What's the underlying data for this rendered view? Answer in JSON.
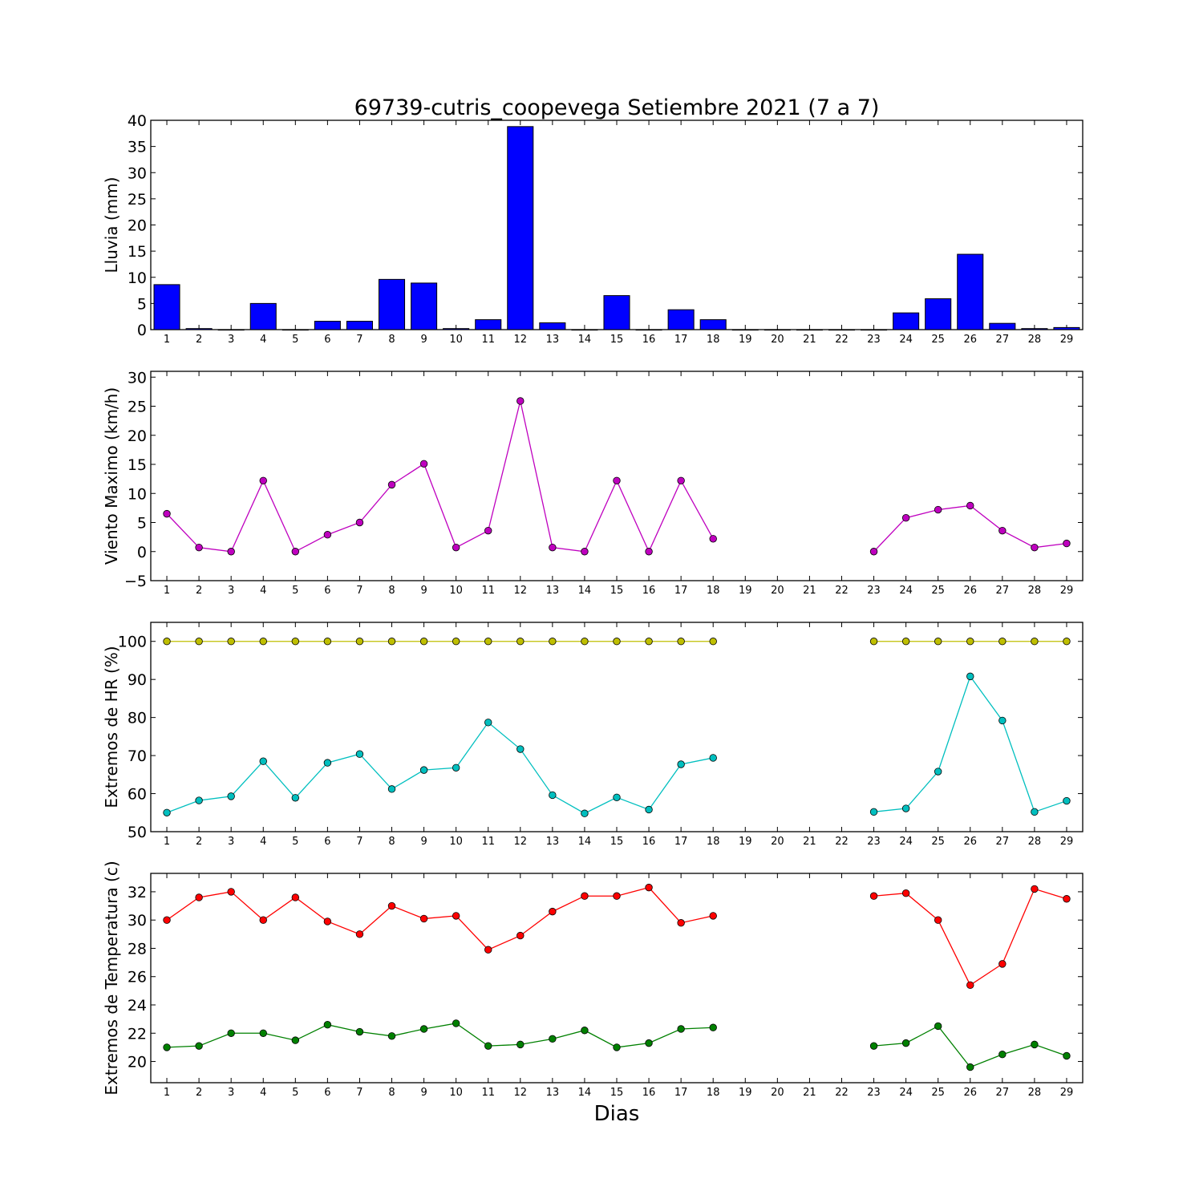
{
  "figure": {
    "title": "69739-cutris_coopevega Setiembre 2021  (7 a 7)",
    "xlabel": "Dias"
  },
  "colors": {
    "rain": "#0000ff",
    "wind": "#bf00bf",
    "hr_max": "#bfbf00",
    "hr_min": "#00bfbf",
    "t_max": "#ff0000",
    "t_min": "#008000"
  },
  "chart_data": [
    {
      "id": "rain",
      "type": "bar",
      "ylabel": "Lluvia (mm)",
      "ylim": [
        0,
        40
      ],
      "yticks": [
        0,
        5,
        10,
        15,
        20,
        25,
        30,
        35,
        40
      ],
      "x": [
        1,
        2,
        3,
        4,
        5,
        6,
        7,
        8,
        9,
        10,
        11,
        12,
        13,
        14,
        15,
        16,
        17,
        18,
        19,
        20,
        21,
        22,
        23,
        24,
        25,
        26,
        27,
        28,
        29
      ],
      "series": [
        {
          "color_key": "rain",
          "values": [
            8.6,
            0.2,
            0,
            5.0,
            0,
            1.6,
            1.6,
            9.6,
            8.9,
            0.2,
            1.9,
            38.8,
            1.3,
            0,
            6.5,
            0,
            3.8,
            1.9,
            0,
            0,
            0,
            0,
            0,
            3.2,
            5.9,
            14.4,
            1.2,
            0.2,
            0.4
          ]
        }
      ]
    },
    {
      "id": "wind",
      "type": "line",
      "ylabel": "Viento Maximo (km/h)",
      "ylim": [
        -5,
        31
      ],
      "yticks": [
        -5,
        0,
        5,
        10,
        15,
        20,
        25,
        30
      ],
      "x": [
        1,
        2,
        3,
        4,
        5,
        6,
        7,
        8,
        9,
        10,
        11,
        12,
        13,
        14,
        15,
        16,
        17,
        18,
        19,
        20,
        21,
        22,
        23,
        24,
        25,
        26,
        27,
        28,
        29
      ],
      "series": [
        {
          "color_key": "wind",
          "values": [
            6.5,
            0.7,
            0,
            12.2,
            0,
            2.9,
            5.0,
            11.5,
            15.1,
            0.7,
            3.6,
            25.9,
            0.7,
            0,
            12.2,
            0,
            12.2,
            2.2,
            null,
            null,
            null,
            null,
            0,
            5.8,
            7.2,
            7.9,
            3.6,
            0.7,
            1.4
          ]
        }
      ]
    },
    {
      "id": "hr",
      "type": "line",
      "ylabel": "Extremos de HR (%)",
      "ylim": [
        50,
        105
      ],
      "yticks": [
        50,
        60,
        70,
        80,
        90,
        100
      ],
      "x": [
        1,
        2,
        3,
        4,
        5,
        6,
        7,
        8,
        9,
        10,
        11,
        12,
        13,
        14,
        15,
        16,
        17,
        18,
        19,
        20,
        21,
        22,
        23,
        24,
        25,
        26,
        27,
        28,
        29
      ],
      "series": [
        {
          "color_key": "hr_max",
          "values": [
            100,
            100,
            100,
            100,
            100,
            100,
            100,
            100,
            100,
            100,
            100,
            100,
            100,
            100,
            100,
            100,
            100,
            100,
            null,
            null,
            null,
            null,
            100,
            100,
            100,
            100,
            100,
            100,
            100
          ]
        },
        {
          "color_key": "hr_min",
          "values": [
            55.0,
            58.2,
            59.3,
            68.5,
            58.9,
            68.1,
            70.4,
            61.2,
            66.2,
            66.8,
            78.7,
            71.7,
            59.6,
            54.8,
            59.0,
            55.8,
            67.7,
            69.4,
            null,
            null,
            null,
            null,
            55.2,
            56.1,
            65.8,
            90.8,
            79.2,
            55.2,
            58.1
          ]
        }
      ]
    },
    {
      "id": "temp",
      "type": "line",
      "ylabel": "Extremos de Temperatura (c)",
      "ylim": [
        18.5,
        33.3
      ],
      "yticks": [
        20,
        22,
        24,
        26,
        28,
        30,
        32
      ],
      "x": [
        1,
        2,
        3,
        4,
        5,
        6,
        7,
        8,
        9,
        10,
        11,
        12,
        13,
        14,
        15,
        16,
        17,
        18,
        19,
        20,
        21,
        22,
        23,
        24,
        25,
        26,
        27,
        28,
        29
      ],
      "series": [
        {
          "color_key": "t_max",
          "values": [
            30.0,
            31.6,
            32.0,
            30.0,
            31.6,
            29.9,
            29.0,
            31.0,
            30.1,
            30.3,
            27.9,
            28.9,
            30.6,
            31.7,
            31.7,
            32.3,
            29.8,
            30.3,
            null,
            null,
            null,
            null,
            31.7,
            31.9,
            30.0,
            25.4,
            26.9,
            32.2,
            31.5
          ]
        },
        {
          "color_key": "t_min",
          "values": [
            21.0,
            21.1,
            22.0,
            22.0,
            21.5,
            22.6,
            22.1,
            21.8,
            22.3,
            22.7,
            21.1,
            21.2,
            21.6,
            22.2,
            21.0,
            21.3,
            22.3,
            22.4,
            null,
            null,
            null,
            null,
            21.1,
            21.3,
            22.5,
            19.6,
            20.5,
            21.2,
            20.4
          ]
        }
      ]
    }
  ]
}
